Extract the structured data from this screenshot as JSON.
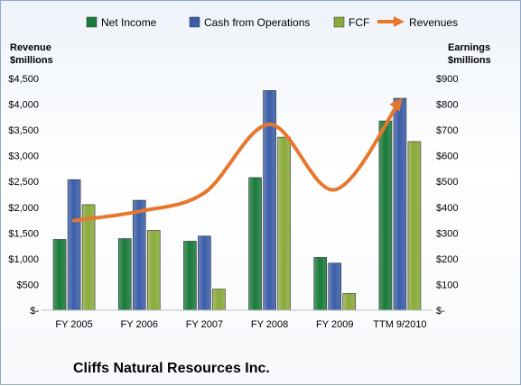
{
  "chart_data": {
    "type": "bar",
    "title": "",
    "company": "Cliffs Natural Resources Inc.",
    "categories": [
      "FY 2005",
      "FY 2006",
      "FY 2007",
      "FY 2008",
      "FY 2009",
      "TTM 9/2010"
    ],
    "left_axis": {
      "label_line1": "Revenue",
      "label_line2": "$millions",
      "range": [
        0,
        4500
      ],
      "step": 500,
      "tick_labels": [
        "$-",
        "$500",
        "$1,000",
        "$1,500",
        "$2,000",
        "$2,500",
        "$3,000",
        "$3,500",
        "$4,000",
        "$4,500"
      ]
    },
    "right_axis": {
      "label_line1": "Earnings",
      "label_line2": "$millions",
      "range": [
        0,
        900
      ],
      "step": 100,
      "tick_labels": [
        "$-",
        "$100",
        "$200",
        "$300",
        "$400",
        "$500",
        "$600",
        "$700",
        "$800",
        "$900"
      ]
    },
    "series": [
      {
        "name": "Net Income",
        "kind": "bar",
        "axis": "right",
        "color": "#1a7a3a",
        "values": [
          275,
          278,
          268,
          515,
          205,
          735
        ]
      },
      {
        "name": "Cash from Operations",
        "kind": "bar",
        "axis": "right",
        "color": "#3b5ea8",
        "values": [
          507,
          427,
          288,
          853,
          183,
          823
        ]
      },
      {
        "name": "FCF",
        "kind": "bar",
        "axis": "right",
        "color": "#8aaa3c",
        "values": [
          410,
          310,
          82,
          672,
          65,
          655
        ]
      },
      {
        "name": "Revenues",
        "kind": "line",
        "axis": "left",
        "color": "#e8772e",
        "values": [
          1740,
          1920,
          2280,
          3610,
          2340,
          4070
        ]
      }
    ],
    "legend_position": "top",
    "grid": false
  }
}
